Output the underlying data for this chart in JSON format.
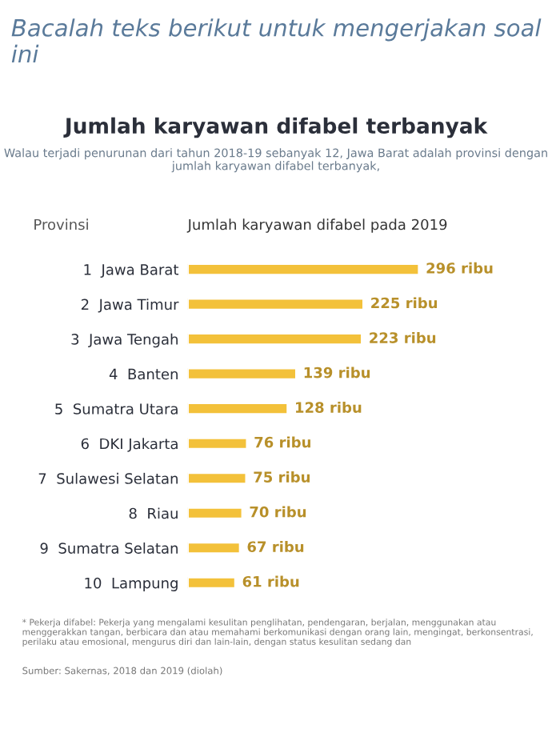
{
  "chart_data": {
    "type": "bar",
    "orientation": "horizontal",
    "title": "Jumlah karyawan difabel terbanyak",
    "subtitle": "Walau terjadi penurunan dari tahun 2018-19 sebanyak 12, Jawa Barat adalah provinsi dengan jumlah karyawan difabel terbanyak,",
    "ylabel": "Provinsi",
    "xlabel": "Jumlah karyawan difabel pada 2019",
    "categories": [
      "1  Jawa Barat",
      "2  Jawa Timur",
      "3  Jawa Tengah",
      "4  Banten",
      "5  Sumatra Utara",
      "6  DKI Jakarta",
      "7  Sulawesi Selatan",
      "8  Riau",
      "9  Sumatra Selatan",
      "10  Lampung"
    ],
    "values": [
      296,
      225,
      223,
      139,
      128,
      76,
      75,
      70,
      67,
      61
    ],
    "value_labels": [
      "296 ribu",
      "225 ribu",
      "223 ribu",
      "139 ribu",
      "128 ribu",
      "76 ribu",
      "75 ribu",
      "70 ribu",
      "67 ribu",
      "61 ribu"
    ],
    "color": "#f3c13a",
    "annotations": [
      "Bacalah teks berikut untuk mengerjakan soal ini",
      "* Pekerja difabel: Pekerja yang mengalami kesulitan penglihatan, pendengaran, berjalan, menggunakan atau menggerakkan tangan, berbicara dan atau memahami berkomunikasi dengan orang lain, mengingat, berkonsentrasi, perilaku atau emosional, mengurus diri dan lain-lain, dengan status kesulitan sedang dan",
      "Sumber: Sakernas, 2018 dan 2019 (diolah)"
    ],
    "grid": false,
    "legend": false
  }
}
